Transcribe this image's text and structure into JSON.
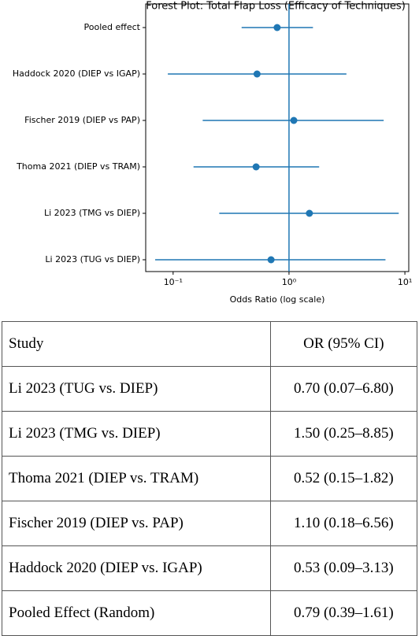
{
  "chart_data": {
    "type": "forest",
    "title": "Forest Plot: Total Flap Loss (Efficacy of Techniques)",
    "xlabel": "Odds Ratio (log scale)",
    "categories": [
      "Pooled effect",
      "Haddock 2020 (DIEP vs IGAP)",
      "Fischer 2019 (DIEP vs PAP)",
      "Thoma 2021 (DIEP vs TRAM)",
      "Li 2023 (TMG vs DIEP)",
      "Li 2023 (TUG vs DIEP)"
    ],
    "values": [
      0.79,
      0.53,
      1.1,
      0.52,
      1.5,
      0.7
    ],
    "lower": [
      0.39,
      0.09,
      0.18,
      0.15,
      0.25,
      0.07
    ],
    "upper": [
      1.61,
      3.13,
      6.56,
      1.82,
      8.85,
      6.8
    ],
    "color": "#1f77b4",
    "xscale": "log",
    "xlim": [
      0.058,
      10.8
    ],
    "xticks": [
      {
        "value": 0.1,
        "label": "10⁻¹"
      },
      {
        "value": 1,
        "label": "10⁰"
      },
      {
        "value": 10,
        "label": "10¹"
      }
    ],
    "reference_line": 1
  },
  "table": {
    "header": [
      "Study",
      "OR (95% CI)"
    ],
    "rows": [
      [
        "Li 2023 (TUG vs. DIEP)",
        "0.70 (0.07–6.80)"
      ],
      [
        "Li 2023 (TMG vs. DIEP)",
        "1.50 (0.25–8.85)"
      ],
      [
        "Thoma 2021 (DIEP vs. TRAM)",
        "0.52 (0.15–1.82)"
      ],
      [
        "Fischer 2019 (DIEP vs. PAP)",
        "1.10 (0.18–6.56)"
      ],
      [
        "Haddock 2020 (DIEP vs. IGAP)",
        "0.53 (0.09–3.13)"
      ],
      [
        "Pooled Effect (Random)",
        "0.79 (0.39–1.61)"
      ]
    ]
  }
}
